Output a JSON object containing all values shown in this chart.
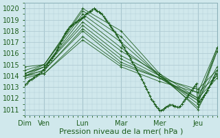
{
  "bg_color": "#d0e8ec",
  "grid_color": "#b0ccd4",
  "line_color": "#1a5c1a",
  "xlabel": "Pression niveau de la mer( hPa )",
  "xlabel_fontsize": 8,
  "tick_fontsize": 7,
  "ylim": [
    1010.5,
    1020.5
  ],
  "yticks": [
    1011,
    1012,
    1013,
    1014,
    1015,
    1016,
    1017,
    1018,
    1019,
    1020
  ],
  "day_labels": [
    "Dim",
    "Ven",
    "Lun",
    "Mar",
    "Mer",
    "Jeu"
  ],
  "day_positions": [
    0,
    24,
    72,
    120,
    168,
    216
  ],
  "xlim": [
    0,
    240
  ],
  "ensemble_lines": [
    {
      "x": [
        0,
        24,
        72,
        120,
        168,
        216,
        240
      ],
      "y": [
        1014.8,
        1015.0,
        1020.0,
        1018.0,
        1014.2,
        1011.0,
        1014.5
      ]
    },
    {
      "x": [
        0,
        24,
        72,
        120,
        168,
        216,
        240
      ],
      "y": [
        1014.5,
        1015.0,
        1019.8,
        1017.5,
        1014.0,
        1011.2,
        1014.2
      ]
    },
    {
      "x": [
        0,
        24,
        72,
        120,
        168,
        216,
        240
      ],
      "y": [
        1014.2,
        1015.0,
        1019.5,
        1017.0,
        1014.0,
        1011.5,
        1016.2
      ]
    },
    {
      "x": [
        0,
        24,
        72,
        120,
        168,
        216,
        240
      ],
      "y": [
        1014.0,
        1014.8,
        1019.2,
        1016.5,
        1014.0,
        1011.8,
        1016.5
      ]
    },
    {
      "x": [
        0,
        24,
        72,
        120,
        168,
        216,
        240
      ],
      "y": [
        1014.2,
        1014.8,
        1018.8,
        1016.2,
        1014.2,
        1012.0,
        1013.8
      ]
    },
    {
      "x": [
        0,
        24,
        72,
        120,
        168,
        216,
        240
      ],
      "y": [
        1014.2,
        1014.8,
        1018.5,
        1015.8,
        1014.0,
        1012.5,
        1014.0
      ]
    },
    {
      "x": [
        0,
        24,
        72,
        120,
        168,
        216,
        240
      ],
      "y": [
        1014.0,
        1014.5,
        1018.2,
        1015.5,
        1013.8,
        1012.8,
        1014.5
      ]
    },
    {
      "x": [
        0,
        24,
        72,
        120,
        168,
        216,
        240
      ],
      "y": [
        1014.0,
        1014.5,
        1018.0,
        1015.2,
        1013.8,
        1011.8,
        1014.8
      ]
    },
    {
      "x": [
        0,
        24,
        72,
        120,
        168,
        216,
        240
      ],
      "y": [
        1014.0,
        1014.2,
        1017.5,
        1015.0,
        1013.8,
        1012.0,
        1016.2
      ]
    },
    {
      "x": [
        0,
        24,
        72,
        120,
        168,
        216,
        240
      ],
      "y": [
        1013.8,
        1014.2,
        1017.2,
        1014.8,
        1013.5,
        1012.5,
        1016.5
      ]
    }
  ],
  "dense_x": [
    0,
    2,
    4,
    6,
    8,
    10,
    12,
    14,
    16,
    18,
    20,
    22,
    24,
    26,
    28,
    30,
    32,
    34,
    36,
    38,
    40,
    42,
    44,
    46,
    48,
    50,
    52,
    54,
    56,
    58,
    60,
    62,
    64,
    66,
    68,
    70,
    72,
    74,
    76,
    78,
    80,
    82,
    84,
    86,
    88,
    90,
    92,
    94,
    96,
    98,
    100,
    102,
    104,
    106,
    108,
    110,
    112,
    114,
    116,
    118,
    120,
    122,
    124,
    126,
    128,
    130,
    132,
    134,
    136,
    138,
    140,
    142,
    144,
    146,
    148,
    150,
    152,
    154,
    156,
    158,
    160,
    162,
    164,
    166,
    168,
    170,
    172,
    174,
    176,
    178,
    180,
    182,
    184,
    186,
    188,
    190,
    192,
    194,
    196,
    198,
    200,
    202,
    204,
    206,
    208,
    210,
    212,
    214,
    216,
    218,
    220,
    222,
    224,
    226,
    228,
    230,
    232,
    234,
    236,
    238
  ],
  "dense_y": [
    1013.2,
    1013.3,
    1013.5,
    1013.6,
    1013.7,
    1013.8,
    1013.9,
    1014.0,
    1014.1,
    1014.2,
    1014.3,
    1014.5,
    1014.6,
    1014.8,
    1015.0,
    1015.2,
    1015.4,
    1015.6,
    1015.8,
    1016.0,
    1016.3,
    1016.6,
    1016.9,
    1017.2,
    1017.5,
    1017.8,
    1018.0,
    1018.2,
    1018.4,
    1018.5,
    1018.6,
    1018.7,
    1018.8,
    1018.9,
    1019.0,
    1019.1,
    1019.2,
    1019.3,
    1019.5,
    1019.6,
    1019.7,
    1019.8,
    1019.9,
    1020.0,
    1019.9,
    1019.8,
    1019.7,
    1019.6,
    1019.5,
    1019.3,
    1019.1,
    1018.9,
    1018.7,
    1018.5,
    1018.3,
    1018.1,
    1017.9,
    1017.7,
    1017.5,
    1017.2,
    1017.0,
    1016.7,
    1016.5,
    1016.2,
    1016.0,
    1015.8,
    1015.5,
    1015.2,
    1015.0,
    1014.7,
    1014.5,
    1014.2,
    1014.0,
    1013.7,
    1013.4,
    1013.1,
    1012.8,
    1012.5,
    1012.2,
    1011.9,
    1011.7,
    1011.5,
    1011.3,
    1011.1,
    1010.9,
    1010.9,
    1011.0,
    1011.1,
    1011.2,
    1011.3,
    1011.4,
    1011.4,
    1011.4,
    1011.3,
    1011.3,
    1011.2,
    1011.2,
    1011.3,
    1011.5,
    1011.7,
    1011.9,
    1012.1,
    1012.3,
    1012.5,
    1012.7,
    1012.9,
    1013.1,
    1013.3,
    1011.5,
    1011.7,
    1011.9,
    1012.1,
    1012.3,
    1012.5,
    1012.7,
    1013.0,
    1013.3,
    1013.6,
    1013.9,
    1014.2
  ]
}
